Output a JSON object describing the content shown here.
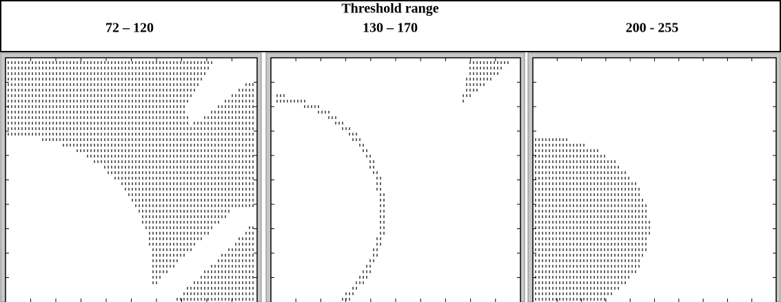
{
  "header": {
    "title": "Threshold range",
    "ranges": [
      "72 – 120",
      "130 – 170",
      "200 - 255"
    ]
  }
}
